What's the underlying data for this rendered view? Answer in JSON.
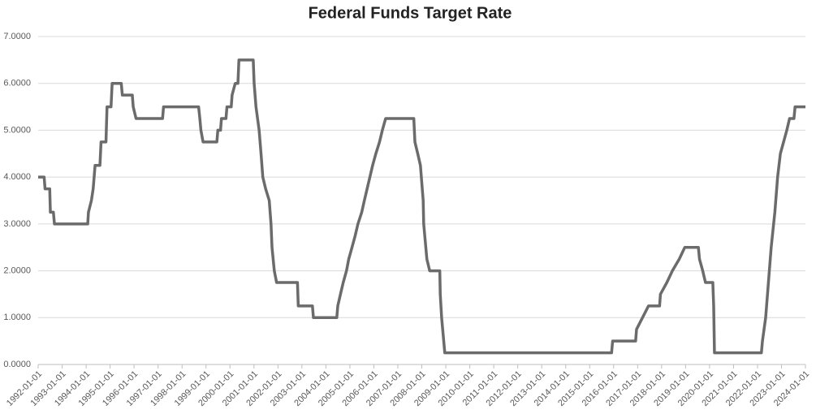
{
  "chart_data": {
    "type": "line",
    "title": "Federal Funds Target Rate",
    "x": [
      "1992-01-01",
      "1992-04-01",
      "1992-04-15",
      "1992-06-25",
      "1992-07-05",
      "1992-08-20",
      "1992-09-05",
      "1994-01-25",
      "1994-02-05",
      "1994-03-22",
      "1994-04-18",
      "1994-05-17",
      "1994-07-30",
      "1994-08-16",
      "1994-10-30",
      "1994-11-15",
      "1995-01-15",
      "1995-02-01",
      "1995-06-20",
      "1995-07-06",
      "1995-12-05",
      "1995-12-19",
      "1996-01-31",
      "1997-03-10",
      "1997-03-25",
      "1998-09-10",
      "1998-09-29",
      "1998-10-15",
      "1998-11-17",
      "1999-06-15",
      "1999-06-30",
      "1999-08-10",
      "1999-08-24",
      "1999-11-01",
      "1999-11-16",
      "2000-01-20",
      "2000-02-02",
      "2000-03-21",
      "2000-05-01",
      "2000-05-16",
      "2000-12-20",
      "2001-01-03",
      "2001-01-31",
      "2001-03-20",
      "2001-04-18",
      "2001-05-15",
      "2001-06-27",
      "2001-08-21",
      "2001-09-17",
      "2001-10-02",
      "2001-11-06",
      "2001-12-11",
      "2002-10-25",
      "2002-11-06",
      "2003-06-10",
      "2003-06-25",
      "2004-06-15",
      "2004-06-30",
      "2004-08-10",
      "2004-09-21",
      "2004-11-10",
      "2004-12-14",
      "2005-02-02",
      "2005-03-22",
      "2005-05-03",
      "2005-06-30",
      "2005-08-09",
      "2005-09-20",
      "2005-11-01",
      "2005-12-13",
      "2006-01-31",
      "2006-03-28",
      "2006-05-10",
      "2006-06-29",
      "2007-09-01",
      "2007-09-18",
      "2007-10-31",
      "2007-12-11",
      "2008-01-22",
      "2008-01-30",
      "2008-03-18",
      "2008-04-30",
      "2008-10-01",
      "2008-10-08",
      "2008-10-29",
      "2008-12-16",
      "2015-12-01",
      "2015-12-17",
      "2016-12-01",
      "2016-12-15",
      "2017-03-16",
      "2017-06-15",
      "2017-12-01",
      "2017-12-14",
      "2018-03-22",
      "2018-06-14",
      "2018-09-27",
      "2018-12-20",
      "2019-07-15",
      "2019-08-01",
      "2019-09-19",
      "2019-10-31",
      "2020-02-20",
      "2020-03-04",
      "2020-03-16",
      "2022-03-01",
      "2022-03-17",
      "2022-05-05",
      "2022-06-16",
      "2022-07-28",
      "2022-09-22",
      "2022-11-03",
      "2022-12-15",
      "2023-02-02",
      "2023-03-23",
      "2023-05-04",
      "2023-07-10",
      "2023-07-27",
      "2024-01-01"
    ],
    "series": [
      {
        "color": "#6b6b6b",
        "values": [
          4.0,
          4.0,
          3.75,
          3.75,
          3.25,
          3.25,
          3.0,
          3.0,
          3.25,
          3.5,
          3.75,
          4.25,
          4.25,
          4.75,
          4.75,
          5.5,
          5.5,
          6.0,
          6.0,
          5.75,
          5.75,
          5.5,
          5.25,
          5.25,
          5.5,
          5.5,
          5.25,
          5.0,
          4.75,
          4.75,
          5.0,
          5.0,
          5.25,
          5.25,
          5.5,
          5.5,
          5.75,
          6.0,
          6.0,
          6.5,
          6.5,
          6.0,
          5.5,
          5.0,
          4.5,
          4.0,
          3.75,
          3.5,
          3.0,
          2.5,
          2.0,
          1.75,
          1.75,
          1.25,
          1.25,
          1.0,
          1.0,
          1.25,
          1.5,
          1.75,
          2.0,
          2.25,
          2.5,
          2.75,
          3.0,
          3.25,
          3.5,
          3.75,
          4.0,
          4.25,
          4.5,
          4.75,
          5.0,
          5.25,
          5.25,
          4.75,
          4.5,
          4.25,
          3.5,
          3.0,
          2.25,
          2.0,
          2.0,
          1.5,
          1.0,
          0.25,
          0.25,
          0.5,
          0.5,
          0.75,
          1.0,
          1.25,
          1.25,
          1.5,
          1.75,
          2.0,
          2.25,
          2.5,
          2.5,
          2.25,
          2.0,
          1.75,
          1.75,
          1.25,
          0.25,
          0.25,
          0.5,
          1.0,
          1.75,
          2.5,
          3.25,
          4.0,
          4.5,
          4.75,
          5.0,
          5.25,
          5.25,
          5.5,
          5.5
        ]
      }
    ],
    "xlim": [
      "1992-01-01",
      "2024-01-01"
    ],
    "xticks": [
      "1992-01-01",
      "1993-01-01",
      "1994-01-01",
      "1995-01-01",
      "1996-01-01",
      "1997-01-01",
      "1998-01-01",
      "1999-01-01",
      "2000-01-01",
      "2001-01-01",
      "2002-01-01",
      "2003-01-01",
      "2004-01-01",
      "2005-01-01",
      "2006-01-01",
      "2007-01-01",
      "2008-01-01",
      "2009-01-01",
      "2010-01-01",
      "2011-01-01",
      "2012-01-01",
      "2013-01-01",
      "2014-01-01",
      "2015-01-01",
      "2016-01-01",
      "2017-01-01",
      "2018-01-01",
      "2019-01-01",
      "2020-01-01",
      "2021-01-01",
      "2022-01-01",
      "2023-01-01",
      "2024-01-01"
    ],
    "ylim": [
      0,
      7
    ],
    "yticks": [
      {
        "value": 0,
        "label": "0.0000"
      },
      {
        "value": 1,
        "label": "1.0000"
      },
      {
        "value": 2,
        "label": "2.0000"
      },
      {
        "value": 3,
        "label": "3.0000"
      },
      {
        "value": 4,
        "label": "4.0000"
      },
      {
        "value": 5,
        "label": "5.0000"
      },
      {
        "value": 6,
        "label": "6.0000"
      },
      {
        "value": 7,
        "label": "7.0000"
      }
    ],
    "grid": true
  }
}
